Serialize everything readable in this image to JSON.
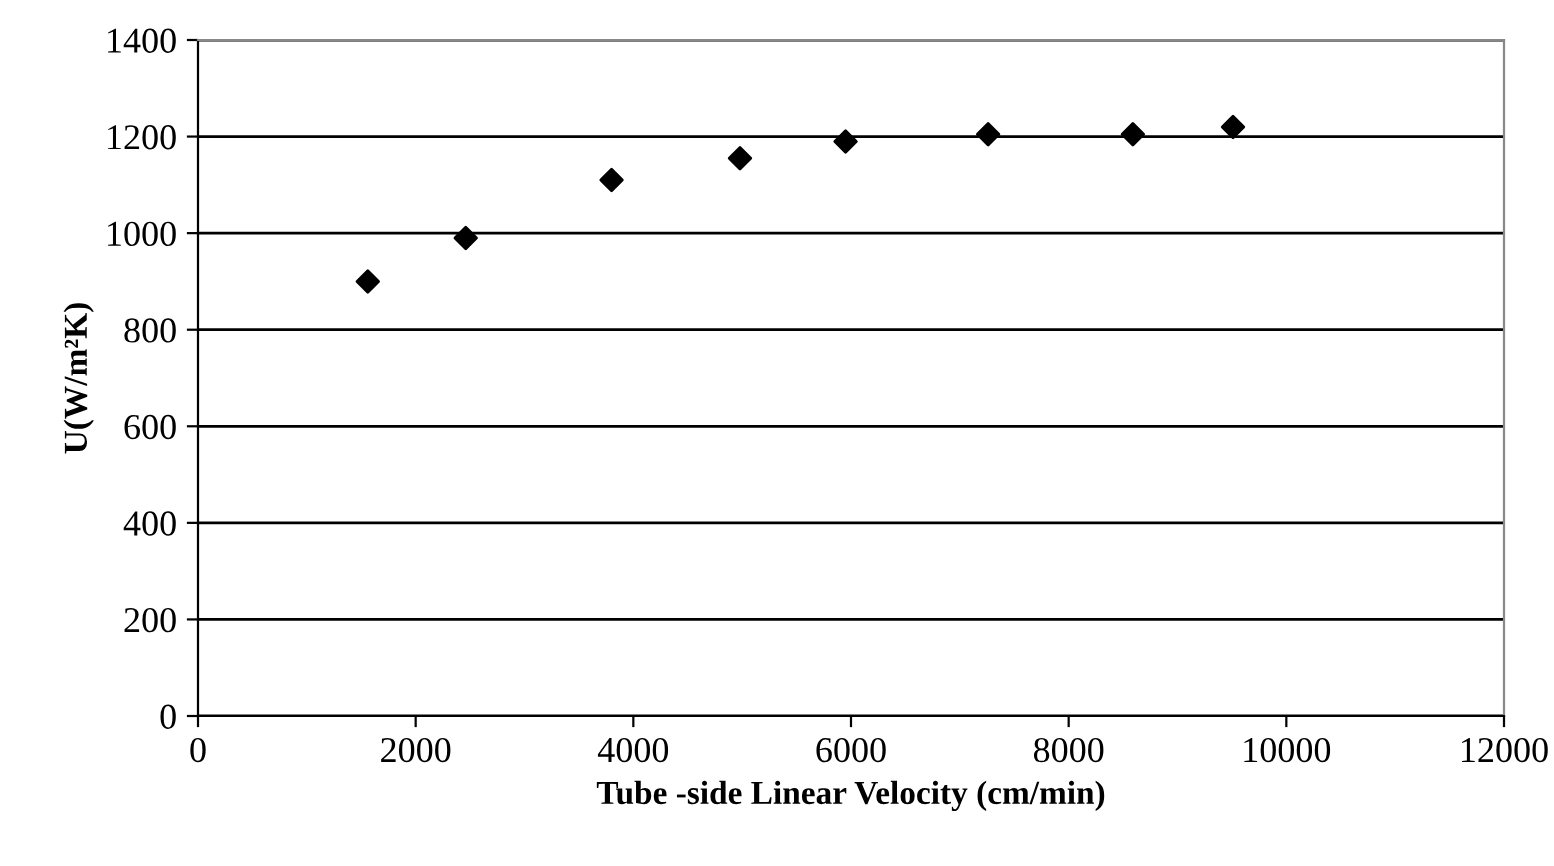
{
  "chart_data": {
    "type": "scatter",
    "xlabel": "Tube -side Linear Velocity (cm/min)",
    "ylabel": "U(W/m²K)",
    "x": [
      1560,
      2460,
      3800,
      4980,
      5950,
      7260,
      8590,
      9510
    ],
    "series": [
      {
        "color": "#000000",
        "values": [
          900,
          990,
          1110,
          1155,
          1190,
          1205,
          1205,
          1220
        ]
      }
    ],
    "xlim": [
      0,
      12000
    ],
    "xticks": [
      0,
      2000,
      4000,
      6000,
      8000,
      10000,
      12000
    ],
    "ylim": [
      0,
      1400
    ],
    "yticks": [
      0,
      200,
      400,
      600,
      800,
      1000,
      1200,
      1400
    ],
    "grid": "y",
    "marker": "diamond"
  }
}
